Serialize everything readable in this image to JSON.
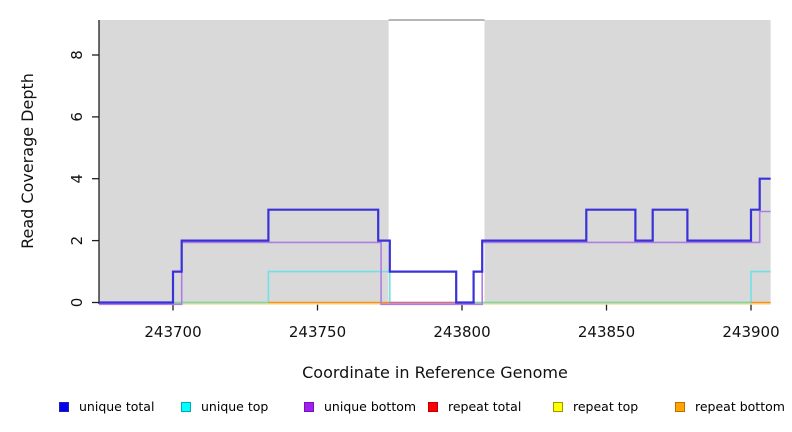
{
  "chart_data": {
    "type": "line",
    "title": "",
    "xlabel": "Coordinate in Reference Genome",
    "ylabel": "Read Coverage Depth",
    "xlim": [
      243674.4,
      243906.8
    ],
    "ylim": [
      0,
      9.1
    ],
    "xticks": [
      243700,
      243750,
      243800,
      243850,
      243900
    ],
    "yticks": [
      0,
      2,
      4,
      6,
      8
    ],
    "grid": false,
    "legend_position": "bottom",
    "background_shading": {
      "fill": "#d9d9d9",
      "regions": [
        [
          243674.4,
          243774.6
        ],
        [
          243807.8,
          243906.8
        ]
      ],
      "gap_top_border_color": "#8c8c8c"
    },
    "series": [
      {
        "name": "repeat top",
        "color": "#ebe3a8",
        "width": 1.2,
        "dy": 1.6,
        "steps": [
          [
            243674.4,
            0
          ],
          [
            243906.8,
            0
          ]
        ]
      },
      {
        "name": "unique top",
        "color": "#6fe2e8",
        "width": 1.6,
        "dy": 0,
        "steps": [
          [
            243674.4,
            0
          ],
          [
            243733,
            1
          ],
          [
            243775,
            0
          ],
          [
            243900,
            1
          ],
          [
            243906.8,
            1
          ]
        ]
      },
      {
        "name": "unique bottom",
        "color": "#ae7ce2",
        "width": 1.6,
        "dy": 1.8,
        "steps": [
          [
            243674.4,
            0
          ],
          [
            243703,
            2
          ],
          [
            243772,
            0
          ],
          [
            243807,
            2
          ],
          [
            243903,
            3
          ],
          [
            243906.8,
            3
          ]
        ]
      },
      {
        "name": "unique total",
        "color": "#3a32d8",
        "width": 2.2,
        "dy": 0,
        "steps": [
          [
            243674.4,
            0
          ],
          [
            243700,
            1
          ],
          [
            243703,
            2
          ],
          [
            243733,
            3
          ],
          [
            243771,
            2
          ],
          [
            243775,
            1
          ],
          [
            243798,
            0
          ],
          [
            243804,
            1
          ],
          [
            243807,
            2
          ],
          [
            243843,
            3
          ],
          [
            243860,
            2
          ],
          [
            243866,
            3
          ],
          [
            243878,
            2
          ],
          [
            243900,
            3
          ],
          [
            243903,
            4
          ],
          [
            243906.8,
            4
          ]
        ]
      }
    ],
    "zero_line_segments": [
      {
        "from": 243700,
        "to": 243733,
        "color": "#8ed192",
        "note": "unique top + repeat top overlap"
      },
      {
        "from": 243733,
        "to": 243774.8,
        "color": "#ff8e0d",
        "note": "repeat bottom"
      },
      {
        "from": 243774.8,
        "to": 243804.5,
        "color": "#e06a7e",
        "note": "repeat total"
      },
      {
        "from": 243804.5,
        "to": 243900,
        "color": "#8ed192",
        "note": "unique top + repeat top overlap"
      },
      {
        "from": 243900,
        "to": 243906.8,
        "color": "#ff8e0d",
        "note": "repeat bottom"
      }
    ]
  },
  "legend": {
    "items": [
      {
        "label": "unique total",
        "fill": "#0000ee",
        "border": "#2222aa"
      },
      {
        "label": "unique top",
        "fill": "#00ffff",
        "border": "#00a8b0"
      },
      {
        "label": "unique bottom",
        "fill": "#a020f0",
        "border": "#7a10b8"
      },
      {
        "label": "repeat total",
        "fill": "#ff0000",
        "border": "#b80000"
      },
      {
        "label": "repeat top",
        "fill": "#ffff00",
        "border": "#9a9a00"
      },
      {
        "label": "repeat bottom",
        "fill": "#ffa500",
        "border": "#bb6f00"
      }
    ]
  }
}
